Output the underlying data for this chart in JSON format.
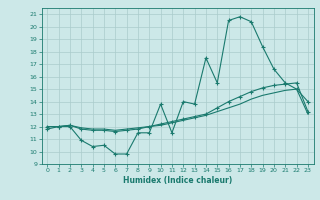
{
  "xlabel": "Humidex (Indice chaleur)",
  "ylabel": "",
  "bg_color": "#cce8e8",
  "line_color": "#1a7a6e",
  "grid_color": "#aacccc",
  "xlim": [
    -0.5,
    23.5
  ],
  "ylim": [
    9,
    21.5
  ],
  "yticks": [
    9,
    10,
    11,
    12,
    13,
    14,
    15,
    16,
    17,
    18,
    19,
    20,
    21
  ],
  "xticks": [
    0,
    1,
    2,
    3,
    4,
    5,
    6,
    7,
    8,
    9,
    10,
    11,
    12,
    13,
    14,
    15,
    16,
    17,
    18,
    19,
    20,
    21,
    22,
    23
  ],
  "series1_x": [
    0,
    1,
    2,
    3,
    4,
    5,
    6,
    7,
    8,
    9,
    10,
    11,
    12,
    13,
    14,
    15,
    16,
    17,
    18,
    19,
    20,
    21,
    22,
    23
  ],
  "series1_y": [
    11.8,
    12.0,
    12.0,
    10.9,
    10.4,
    10.5,
    9.8,
    9.8,
    11.5,
    11.5,
    13.8,
    11.5,
    14.0,
    13.8,
    17.5,
    15.5,
    20.5,
    20.8,
    20.4,
    18.4,
    16.6,
    15.5,
    15.0,
    14.0
  ],
  "series2_x": [
    0,
    1,
    2,
    3,
    4,
    5,
    6,
    7,
    8,
    9,
    10,
    11,
    12,
    13,
    14,
    15,
    16,
    17,
    18,
    19,
    20,
    21,
    22,
    23
  ],
  "series2_y": [
    12.0,
    12.0,
    12.1,
    11.8,
    11.7,
    11.7,
    11.6,
    11.7,
    11.8,
    12.0,
    12.2,
    12.4,
    12.6,
    12.8,
    13.0,
    13.5,
    14.0,
    14.4,
    14.8,
    15.1,
    15.3,
    15.4,
    15.5,
    13.2
  ],
  "series3_x": [
    0,
    1,
    2,
    3,
    4,
    5,
    6,
    7,
    8,
    9,
    10,
    11,
    12,
    13,
    14,
    15,
    16,
    17,
    18,
    19,
    20,
    21,
    22,
    23
  ],
  "series3_y": [
    12.0,
    12.0,
    12.1,
    11.9,
    11.8,
    11.8,
    11.7,
    11.8,
    11.9,
    12.0,
    12.1,
    12.3,
    12.5,
    12.7,
    12.9,
    13.2,
    13.5,
    13.8,
    14.2,
    14.5,
    14.7,
    14.9,
    15.0,
    13.0
  ]
}
